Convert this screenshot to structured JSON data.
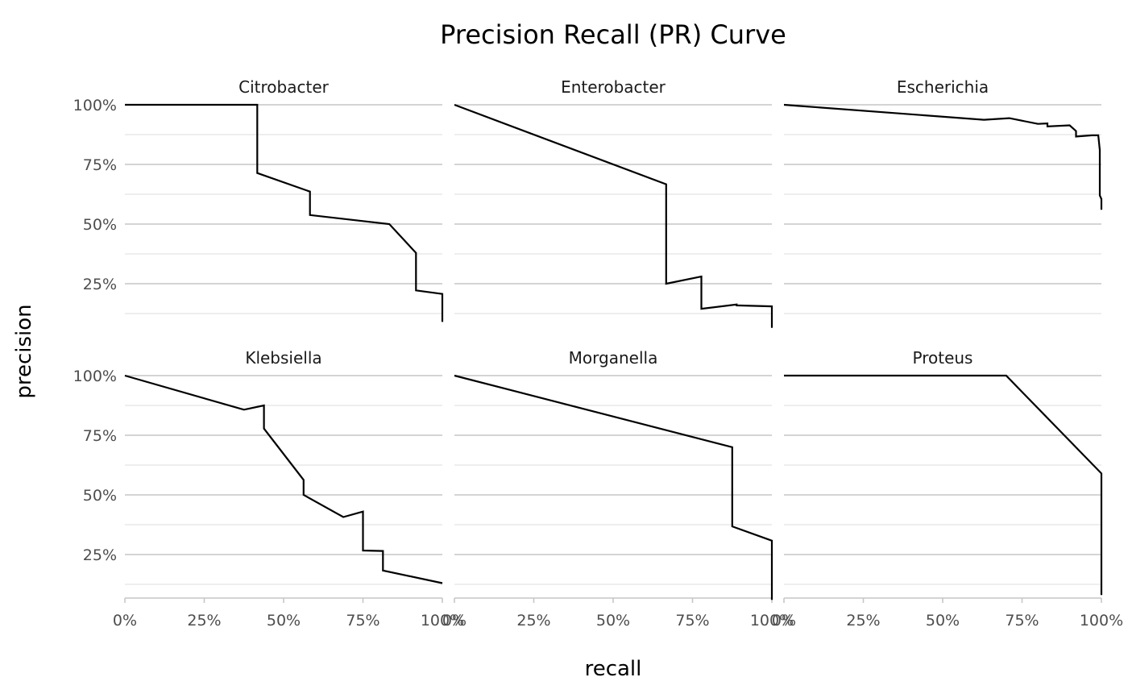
{
  "chart_data": {
    "type": "line",
    "title": "Precision Recall (PR) Curve",
    "xlabel": "recall",
    "ylabel": "precision",
    "xlim": [
      0,
      1
    ],
    "x_ticks": [
      0,
      0.25,
      0.5,
      0.75,
      1
    ],
    "x_tick_labels": [
      "0%",
      "25%",
      "50%",
      "75%",
      "100%"
    ],
    "y_ticks": [
      0.25,
      0.5,
      0.75,
      1
    ],
    "y_tick_labels": [
      "25%",
      "50%",
      "75%",
      "100%"
    ],
    "grid": true,
    "facet_layout": {
      "rows": 2,
      "cols": 3
    },
    "panels": [
      {
        "name": "Citrobacter",
        "ylim": [
          0.08,
          1.05
        ],
        "points": [
          [
            0,
            1
          ],
          [
            0.417,
            1
          ],
          [
            0.417,
            0.714
          ],
          [
            0.583,
            0.636
          ],
          [
            0.583,
            0.538
          ],
          [
            0.833,
            0.5
          ],
          [
            0.917,
            0.379
          ],
          [
            0.917,
            0.222
          ],
          [
            1.0,
            0.207
          ],
          [
            1.0,
            0.09
          ]
        ]
      },
      {
        "name": "Enterobacter",
        "ylim": [
          0.08,
          1.05
        ],
        "points": [
          [
            0,
            1
          ],
          [
            0.667,
            0.667
          ],
          [
            0.667,
            0.25
          ],
          [
            0.778,
            0.28
          ],
          [
            0.778,
            0.145
          ],
          [
            0.889,
            0.163
          ],
          [
            0.889,
            0.159
          ],
          [
            1.0,
            0.155
          ],
          [
            1.0,
            0.065
          ]
        ]
      },
      {
        "name": "Escherichia",
        "ylim": [
          0.08,
          1.05
        ],
        "points": [
          [
            0,
            1
          ],
          [
            0.05,
            0.995
          ],
          [
            0.63,
            0.937
          ],
          [
            0.71,
            0.944
          ],
          [
            0.8,
            0.92
          ],
          [
            0.83,
            0.922
          ],
          [
            0.83,
            0.909
          ],
          [
            0.9,
            0.914
          ],
          [
            0.92,
            0.89
          ],
          [
            0.92,
            0.867
          ],
          [
            0.97,
            0.872
          ],
          [
            0.99,
            0.872
          ],
          [
            0.995,
            0.81
          ],
          [
            0.995,
            0.62
          ],
          [
            1.0,
            0.605
          ],
          [
            1.0,
            0.56
          ]
        ]
      },
      {
        "name": "Klebsiella",
        "ylim": [
          0.06,
          1.05
        ],
        "points": [
          [
            0,
            1
          ],
          [
            0.375,
            0.857
          ],
          [
            0.438,
            0.875
          ],
          [
            0.438,
            0.778
          ],
          [
            0.563,
            0.563
          ],
          [
            0.563,
            0.5
          ],
          [
            0.688,
            0.407
          ],
          [
            0.75,
            0.43
          ],
          [
            0.75,
            0.267
          ],
          [
            0.813,
            0.265
          ],
          [
            0.813,
            0.183
          ],
          [
            1.0,
            0.13
          ]
        ]
      },
      {
        "name": "Morganella",
        "ylim": [
          0.06,
          1.05
        ],
        "points": [
          [
            0,
            1
          ],
          [
            0.875,
            0.7
          ],
          [
            0.875,
            0.368
          ],
          [
            1.0,
            0.308
          ],
          [
            1.0,
            0.06
          ]
        ]
      },
      {
        "name": "Proteus",
        "ylim": [
          0.06,
          1.05
        ],
        "points": [
          [
            0,
            1
          ],
          [
            0.7,
            1
          ],
          [
            1.0,
            0.59
          ],
          [
            1.0,
            0.08
          ]
        ]
      }
    ]
  }
}
